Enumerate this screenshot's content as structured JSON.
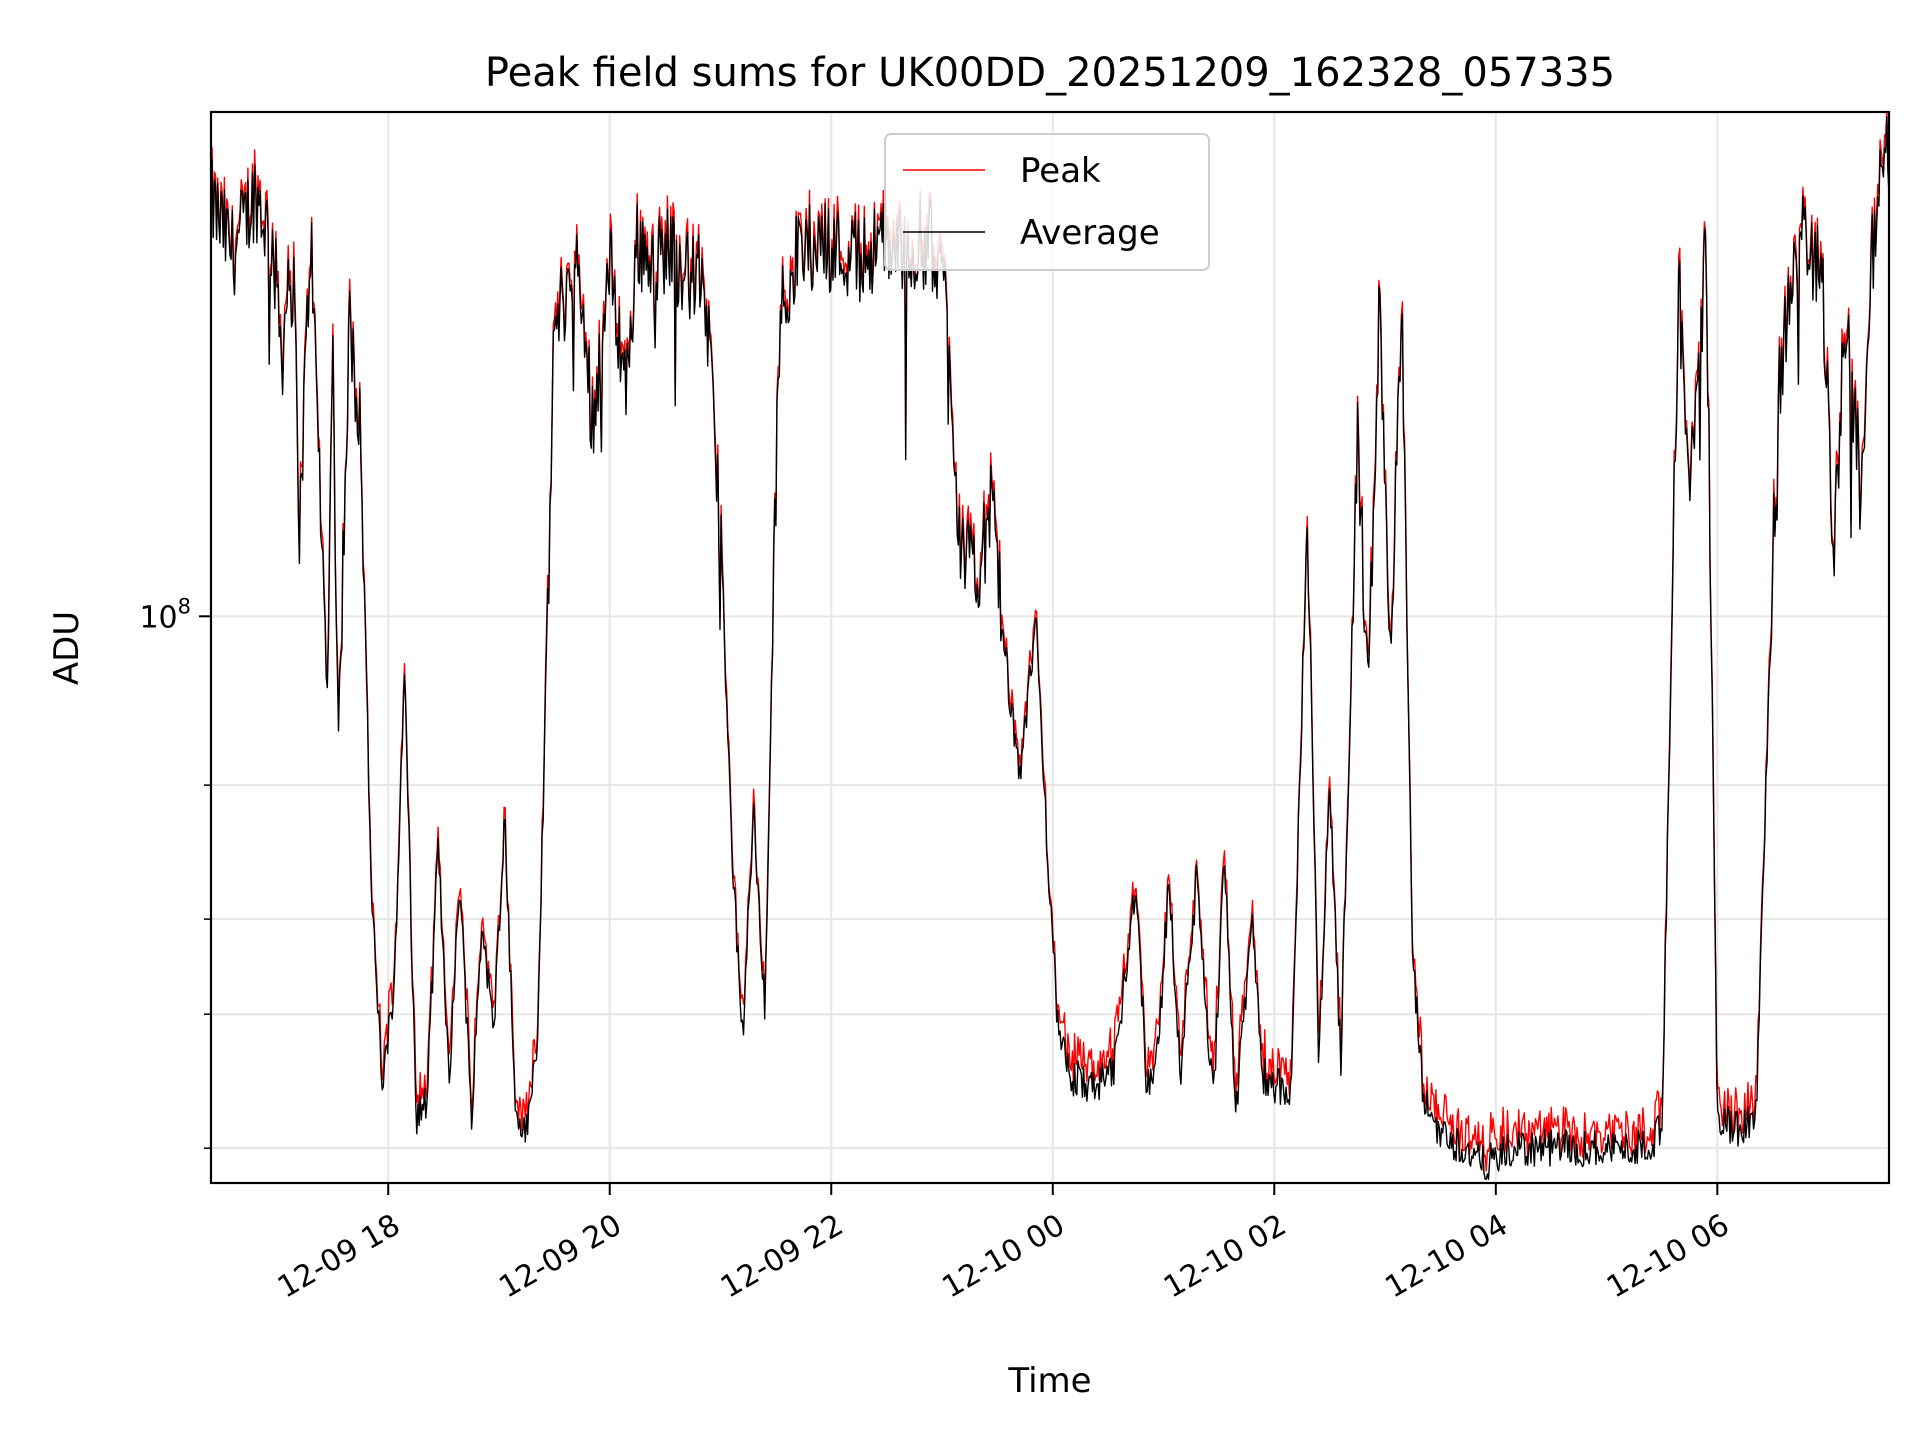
{
  "chart_data": {
    "type": "line",
    "title": "Peak field sums for UK00DD_20251209_162328_057335",
    "xlabel": "Time",
    "ylabel": "ADU",
    "yscale": "log",
    "ylim": [
      18000000,
      460000000
    ],
    "y_major_tick": {
      "value": 100000000,
      "label": "10^8",
      "base": "10",
      "exp": "8"
    },
    "y_minor_ticks": [
      20000000,
      30000000,
      40000000,
      60000000
    ],
    "xlim_hours": [
      -1.6,
      13.55
    ],
    "x_ticks": [
      {
        "hour": 0,
        "label": "12-09 18"
      },
      {
        "hour": 2,
        "label": "12-09 20"
      },
      {
        "hour": 4,
        "label": "12-09 22"
      },
      {
        "hour": 6,
        "label": "12-10 00"
      },
      {
        "hour": 8,
        "label": "12-10 02"
      },
      {
        "hour": 10,
        "label": "12-10 04"
      },
      {
        "hour": 12,
        "label": "12-10 06"
      }
    ],
    "grid": true,
    "legend_position": "upper-center",
    "series": [
      {
        "name": "Peak",
        "color": "#ff0000",
        "peak_excess": [
          0.006,
          0.035
        ]
      },
      {
        "name": "Average",
        "color": "#000000"
      }
    ],
    "average_anchor_points": [
      [
        -1.6,
        350000000
      ],
      [
        -1.4,
        300000000
      ],
      [
        -1.2,
        360000000
      ],
      [
        -1.05,
        310000000
      ],
      [
        -0.95,
        220000000
      ],
      [
        -0.9,
        290000000
      ],
      [
        -0.85,
        260000000
      ],
      [
        -0.8,
        130000000
      ],
      [
        -0.7,
        320000000
      ],
      [
        -0.55,
        80000000
      ],
      [
        -0.5,
        220000000
      ],
      [
        -0.45,
        70000000
      ],
      [
        -0.35,
        240000000
      ],
      [
        -0.25,
        180000000
      ],
      [
        -0.15,
        42000000
      ],
      [
        -0.05,
        24000000
      ],
      [
        0.05,
        32000000
      ],
      [
        0.15,
        85000000
      ],
      [
        0.25,
        22000000
      ],
      [
        0.35,
        23000000
      ],
      [
        0.45,
        50000000
      ],
      [
        0.55,
        25000000
      ],
      [
        0.65,
        45000000
      ],
      [
        0.75,
        22000000
      ],
      [
        0.85,
        40000000
      ],
      [
        0.95,
        28000000
      ],
      [
        1.05,
        55000000
      ],
      [
        1.15,
        22000000
      ],
      [
        1.25,
        21000000
      ],
      [
        1.35,
        28000000
      ],
      [
        1.5,
        240000000
      ],
      [
        1.7,
        290000000
      ],
      [
        1.85,
        180000000
      ],
      [
        2.0,
        290000000
      ],
      [
        2.15,
        200000000
      ],
      [
        2.25,
        310000000
      ],
      [
        2.4,
        290000000
      ],
      [
        2.55,
        310000000
      ],
      [
        2.7,
        280000000
      ],
      [
        2.85,
        280000000
      ],
      [
        3.0,
        130000000
      ],
      [
        3.1,
        50000000
      ],
      [
        3.2,
        28000000
      ],
      [
        3.3,
        55000000
      ],
      [
        3.4,
        30000000
      ],
      [
        3.5,
        150000000
      ],
      [
        3.55,
        260000000
      ],
      [
        3.7,
        300000000
      ],
      [
        3.9,
        310000000
      ],
      [
        4.1,
        300000000
      ],
      [
        4.3,
        300000000
      ],
      [
        4.5,
        310000000
      ],
      [
        4.7,
        300000000
      ],
      [
        4.9,
        310000000
      ],
      [
        5.05,
        260000000
      ],
      [
        5.15,
        130000000
      ],
      [
        5.3,
        110000000
      ],
      [
        5.45,
        140000000
      ],
      [
        5.55,
        95000000
      ],
      [
        5.7,
        60000000
      ],
      [
        5.85,
        100000000
      ],
      [
        5.95,
        50000000
      ],
      [
        6.05,
        28000000
      ],
      [
        6.15,
        25000000
      ],
      [
        6.35,
        24000000
      ],
      [
        6.55,
        25000000
      ],
      [
        6.75,
        45000000
      ],
      [
        6.85,
        24000000
      ],
      [
        6.95,
        27000000
      ],
      [
        7.05,
        45000000
      ],
      [
        7.15,
        25000000
      ],
      [
        7.3,
        45000000
      ],
      [
        7.45,
        23000000
      ],
      [
        7.55,
        50000000
      ],
      [
        7.65,
        22000000
      ],
      [
        7.8,
        40000000
      ],
      [
        7.9,
        25000000
      ],
      [
        8.05,
        24000000
      ],
      [
        8.15,
        23000000
      ],
      [
        8.3,
        140000000
      ],
      [
        8.4,
        26000000
      ],
      [
        8.5,
        60000000
      ],
      [
        8.6,
        26000000
      ],
      [
        8.75,
        170000000
      ],
      [
        8.85,
        80000000
      ],
      [
        8.95,
        260000000
      ],
      [
        9.05,
        90000000
      ],
      [
        9.15,
        250000000
      ],
      [
        9.25,
        35000000
      ],
      [
        9.35,
        23000000
      ],
      [
        9.5,
        21000000
      ],
      [
        9.7,
        20000000
      ],
      [
        9.9,
        19000000
      ],
      [
        10.2,
        20000000
      ],
      [
        10.6,
        20000000
      ],
      [
        11.0,
        20000000
      ],
      [
        11.3,
        20000000
      ],
      [
        11.5,
        21000000
      ],
      [
        11.65,
        280000000
      ],
      [
        11.75,
        140000000
      ],
      [
        11.9,
        310000000
      ],
      [
        12.0,
        22000000
      ],
      [
        12.2,
        21000000
      ],
      [
        12.35,
        22000000
      ],
      [
        12.55,
        200000000
      ],
      [
        12.75,
        320000000
      ],
      [
        12.95,
        280000000
      ],
      [
        13.05,
        120000000
      ],
      [
        13.15,
        250000000
      ],
      [
        13.3,
        150000000
      ],
      [
        13.4,
        300000000
      ],
      [
        13.55,
        450000000
      ]
    ]
  }
}
